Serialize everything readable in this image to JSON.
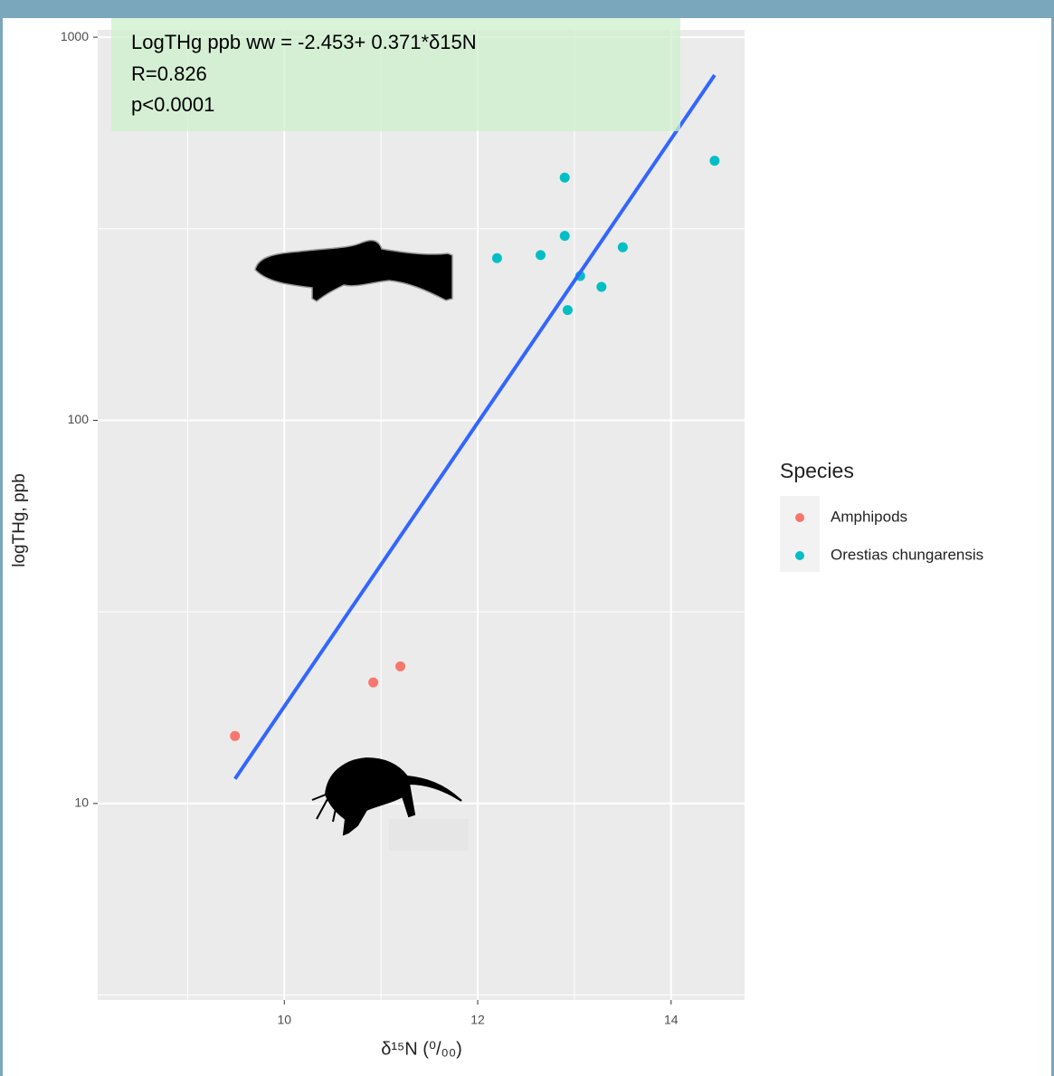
{
  "chart_data": {
    "type": "scatter",
    "annotations": [
      "LogTHg ppb ww = -2.453+ 0.371*δ15N",
      "R=0.826",
      "p<0.0001"
    ],
    "xlabel": "δ¹⁵N (⁰/₀₀)",
    "ylabel": "logTHg, ppb",
    "xlim": [
      8.07,
      14.76
    ],
    "xticks": [
      10,
      12,
      14
    ],
    "ylim": [
      3.07,
      1045
    ],
    "yticks": [
      10,
      100,
      1000
    ],
    "ylog": true,
    "grid": true,
    "legend_title": "Species",
    "legend": "right",
    "series": [
      {
        "name": "Amphipods",
        "color": "#F8766D",
        "x": [
          9.49,
          10.92,
          11.2
        ],
        "values": [
          15.0,
          20.7,
          22.8
        ]
      },
      {
        "name": "Orestias chungarensis",
        "color": "#00BFC4",
        "x": [
          12.2,
          12.65,
          12.9,
          12.9,
          12.93,
          13.06,
          13.28,
          13.5,
          14.45
        ],
        "values": [
          265,
          270,
          430,
          303,
          194,
          238,
          223,
          283,
          476
        ]
      }
    ],
    "fit": {
      "color": "#3366FF",
      "x": [
        9.49,
        14.45
      ],
      "y": [
        11.6,
        796
      ]
    }
  }
}
